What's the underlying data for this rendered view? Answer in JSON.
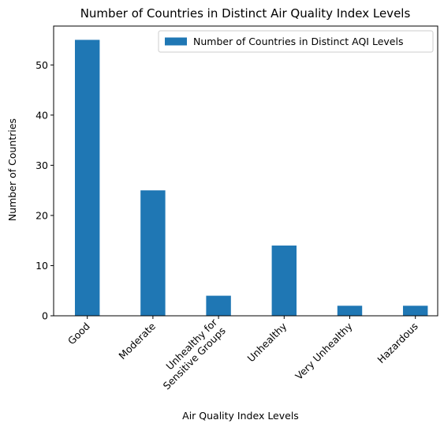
{
  "chart_data": {
    "type": "bar",
    "title": "Number of Countries in Distinct Air Quality Index Levels",
    "xlabel": "Air Quality Index Levels",
    "ylabel": "Number of Countries",
    "categories": [
      [
        "Good"
      ],
      [
        "Moderate"
      ],
      [
        "Unhealthy for",
        "Sensitive Groups"
      ],
      [
        "Unhealthy"
      ],
      [
        "Very Unhealthy"
      ],
      [
        "Hazardous"
      ]
    ],
    "series": [
      {
        "name": "Number of Countries in Distinct AQI Levels",
        "values": [
          55,
          25,
          4,
          14,
          2,
          2
        ],
        "color": "#1f77b4"
      }
    ],
    "ylim": [
      0,
      57.75
    ],
    "yticks": [
      0,
      10,
      20,
      30,
      40,
      50
    ],
    "grid": false,
    "legend_position": "top-right",
    "xtick_rotation": 45
  }
}
